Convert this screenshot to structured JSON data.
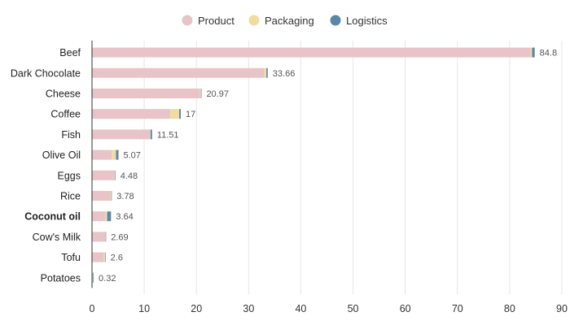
{
  "chart_data": {
    "type": "bar",
    "orientation": "horizontal",
    "stacked": true,
    "legend_position": "top-center",
    "grid": true,
    "xlim": [
      0,
      90
    ],
    "x_ticks": [
      0,
      10,
      20,
      30,
      40,
      50,
      60,
      70,
      80,
      90
    ],
    "categories": [
      "Beef",
      "Dark Chocolate",
      "Cheese",
      "Coffee",
      "Fish",
      "Olive Oil",
      "Eggs",
      "Rice",
      "Coconut oil",
      "Cow's Milk",
      "Tofu",
      "Potatoes"
    ],
    "highlighted_category": "Coconut oil",
    "series": [
      {
        "name": "Product",
        "color": "#e8c4c8",
        "values": [
          84.0,
          33.0,
          20.7,
          15.0,
          11.1,
          3.8,
          4.3,
          3.5,
          2.6,
          2.5,
          2.3,
          0.1
        ]
      },
      {
        "name": "Packaging",
        "color": "#f0dc9e",
        "values": [
          0.3,
          0.4,
          0.17,
          1.7,
          0.1,
          0.8,
          0.1,
          0.2,
          0.3,
          0.1,
          0.2,
          0.1
        ]
      },
      {
        "name": "Logistics",
        "color": "#5a87a6",
        "values": [
          0.5,
          0.26,
          0.1,
          0.3,
          0.31,
          0.47,
          0.08,
          0.08,
          0.74,
          0.09,
          0.1,
          0.12
        ]
      }
    ],
    "totals": [
      "84.8",
      "33.66",
      "20.97",
      "17",
      "11.51",
      "5.07",
      "4.48",
      "3.78",
      "3.64",
      "2.69",
      "2.6",
      "0.32"
    ]
  }
}
